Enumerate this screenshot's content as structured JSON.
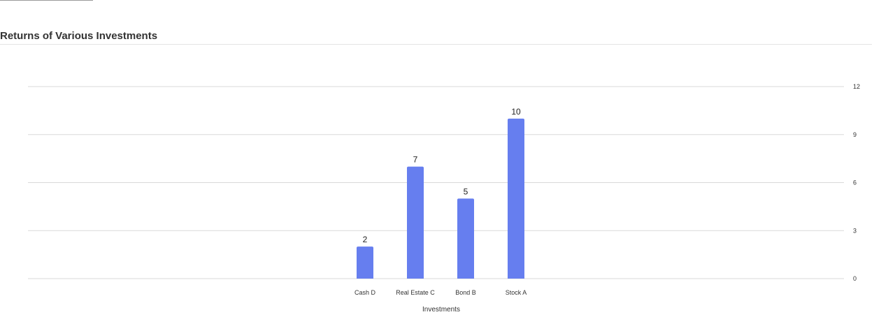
{
  "chart_data": {
    "type": "bar",
    "title": "Returns of Various Investments",
    "xlabel": "Investments",
    "ylabel": "",
    "categories": [
      "Cash D",
      "Real Estate C",
      "Bond B",
      "Stock A"
    ],
    "values": [
      2,
      7,
      5,
      10
    ],
    "ylim": [
      0,
      12
    ],
    "yticks": [
      0,
      3,
      6,
      9,
      12
    ],
    "y_axis_side": "right",
    "grid": true,
    "legend": "none",
    "data_labels": true,
    "bar_color": "#667eef",
    "grid_color": "#d9d9d9"
  }
}
